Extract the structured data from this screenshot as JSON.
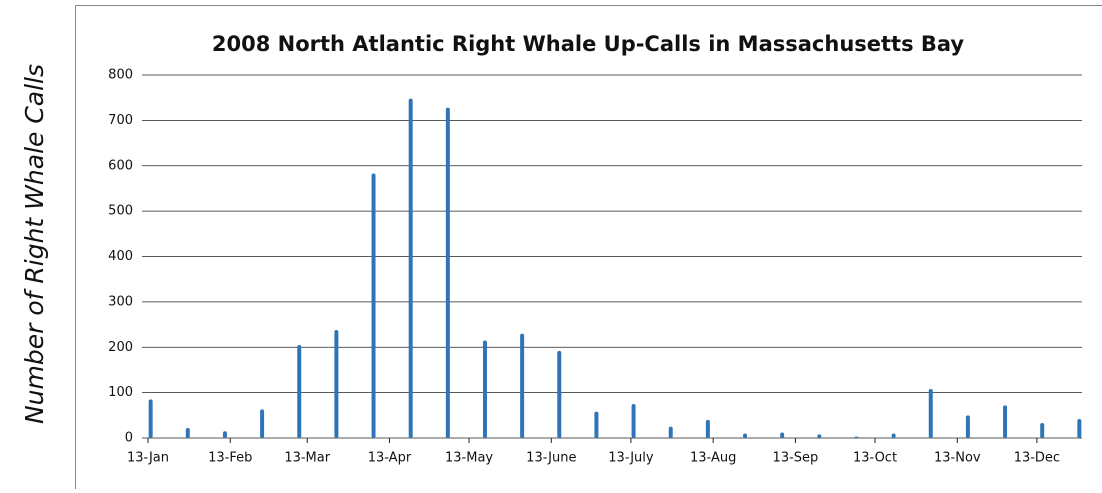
{
  "chart_data": {
    "type": "bar",
    "title": "2008 North Atlantic Right Whale Up-Calls in Massachusetts Bay",
    "y_label": "Number of Right Whale Calls",
    "x": [
      14,
      28,
      42,
      56,
      70,
      84,
      98,
      112,
      126,
      140,
      154,
      168,
      182,
      196,
      210,
      224,
      238,
      252,
      266,
      280,
      294,
      308,
      322,
      336,
      350,
      364
    ],
    "values": [
      85,
      22,
      15,
      63,
      205,
      238,
      583,
      748,
      728,
      215,
      230,
      192,
      58,
      75,
      25,
      40,
      10,
      12,
      8,
      3,
      10,
      108,
      50,
      72,
      33,
      42
    ],
    "color": "#2e75b6",
    "xlim": [
      13,
      365
    ],
    "xticks": [
      {
        "value": 13,
        "label": "13-Jan"
      },
      {
        "value": 44,
        "label": "13-Feb"
      },
      {
        "value": 73,
        "label": "13-Mar"
      },
      {
        "value": 104,
        "label": "13-Apr"
      },
      {
        "value": 134,
        "label": "13-May"
      },
      {
        "value": 165,
        "label": "13-June"
      },
      {
        "value": 195,
        "label": "13-July"
      },
      {
        "value": 226,
        "label": "13-Aug"
      },
      {
        "value": 257,
        "label": "13-Sep"
      },
      {
        "value": 287,
        "label": "13-Oct"
      },
      {
        "value": 318,
        "label": "13-Nov"
      },
      {
        "value": 348,
        "label": "13-Dec"
      }
    ],
    "ylim": [
      0,
      800
    ],
    "yticks": [
      0,
      100,
      200,
      300,
      400,
      500,
      600,
      700,
      800
    ],
    "grid": true
  }
}
